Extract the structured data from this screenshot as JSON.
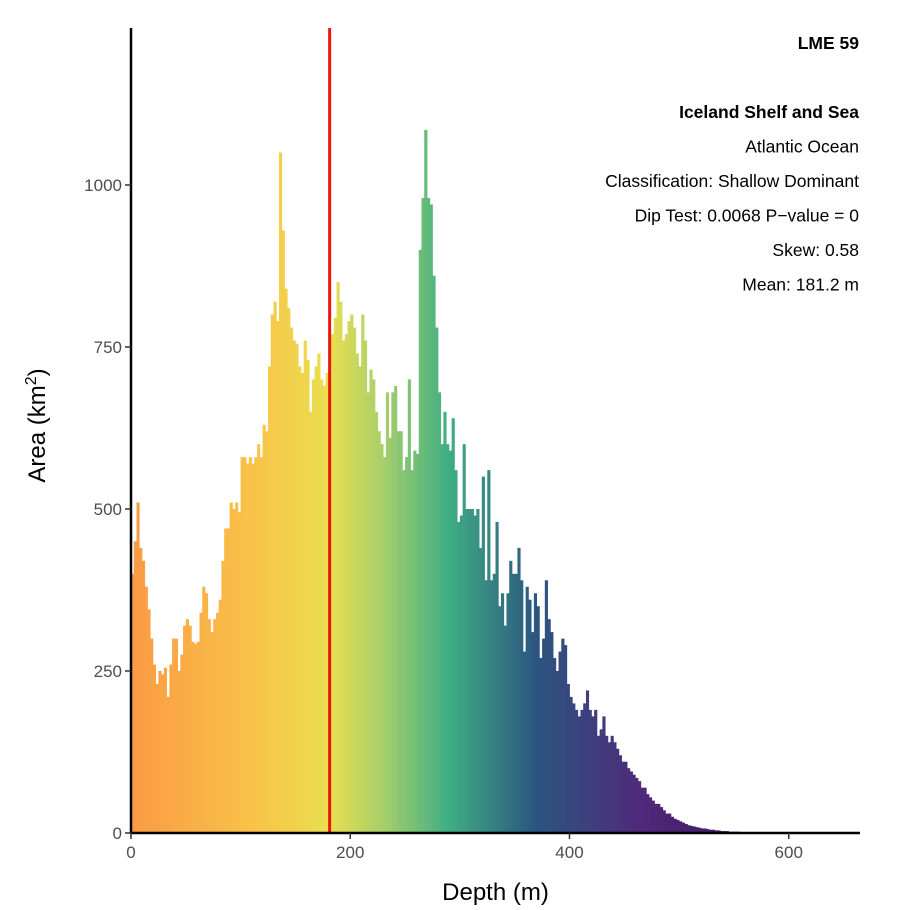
{
  "chart_data": {
    "type": "bar",
    "subtype": "histogram",
    "xlabel": "Depth (m)",
    "ylabel": {
      "prefix": "Area (km",
      "superscript": "2",
      "suffix": ")"
    },
    "xlim": [
      0,
      665
    ],
    "ylim": [
      0,
      1250
    ],
    "xticks": [
      0,
      200,
      400,
      600
    ],
    "xtick_labels": [
      "0",
      "200",
      "400",
      "600"
    ],
    "yticks": [
      0,
      250,
      500,
      750,
      1000
    ],
    "ytick_labels": [
      "0",
      "250",
      "500",
      "750",
      "1000"
    ],
    "grid": false,
    "bin_width": 2.5,
    "bin_start": 0,
    "values": [
      400,
      450,
      510,
      440,
      420,
      380,
      345,
      300,
      260,
      230,
      250,
      245,
      255,
      210,
      260,
      300,
      300,
      250,
      275,
      320,
      330,
      320,
      295,
      292,
      295,
      340,
      380,
      370,
      330,
      310,
      330,
      340,
      360,
      420,
      470,
      470,
      510,
      500,
      510,
      495,
      580,
      580,
      570,
      580,
      570,
      580,
      600,
      580,
      630,
      620,
      720,
      800,
      820,
      790,
      1050,
      930,
      840,
      810,
      780,
      760,
      755,
      720,
      710,
      760,
      730,
      650,
      700,
      720,
      740,
      700,
      690,
      710,
      770,
      770,
      795,
      850,
      820,
      760,
      770,
      790,
      800,
      780,
      740,
      720,
      800,
      760,
      680,
      715,
      700,
      650,
      620,
      600,
      580,
      680,
      610,
      680,
      690,
      620,
      620,
      560,
      580,
      700,
      560,
      590,
      585,
      900,
      980,
      1085,
      980,
      970,
      860,
      780,
      680,
      600,
      650,
      600,
      590,
      640,
      560,
      480,
      490,
      600,
      500,
      500,
      500,
      490,
      500,
      440,
      550,
      390,
      560,
      390,
      400,
      480,
      350,
      370,
      320,
      370,
      420,
      400,
      400,
      440,
      390,
      280,
      380,
      360,
      310,
      370,
      350,
      270,
      300,
      390,
      330,
      310,
      270,
      250,
      280,
      300,
      290,
      230,
      210,
      200,
      190,
      180,
      190,
      200,
      220,
      190,
      180,
      190,
      150,
      160,
      180,
      150,
      140,
      150,
      140,
      130,
      120,
      110,
      110,
      100,
      95,
      90,
      85,
      80,
      70,
      70,
      60,
      55,
      50,
      45,
      45,
      40,
      35,
      30,
      30,
      25,
      22,
      20,
      18,
      16,
      14,
      12,
      11,
      10,
      9,
      8,
      7,
      7,
      6,
      5,
      5,
      4,
      4,
      3,
      3,
      3,
      2,
      2,
      2,
      2,
      1,
      1,
      1,
      1,
      1,
      1,
      1,
      1,
      1,
      1,
      0,
      1,
      0,
      0,
      0,
      1,
      0,
      0,
      0,
      0,
      0,
      0,
      0,
      0,
      0,
      0,
      0,
      0,
      0,
      0,
      0,
      0,
      0,
      0,
      0,
      0,
      0,
      0,
      0,
      0,
      0,
      0,
      0,
      0,
      0,
      0,
      0,
      0,
      0,
      0,
      0,
      0,
      0,
      0,
      0,
      0,
      0,
      0,
      0,
      0,
      0,
      0
    ],
    "mean_line": {
      "x": 181.2,
      "color": "#e8170f"
    },
    "color_stops": [
      {
        "x": 0,
        "color": "#fa9a45"
      },
      {
        "x": 110,
        "color": "#f9c248"
      },
      {
        "x": 180,
        "color": "#eadf4f"
      },
      {
        "x": 230,
        "color": "#a6cf6b"
      },
      {
        "x": 290,
        "color": "#3fae83"
      },
      {
        "x": 370,
        "color": "#2c5580"
      },
      {
        "x": 470,
        "color": "#50287a"
      },
      {
        "x": 665,
        "color": "#1e0b3a"
      }
    ],
    "annotations": [
      {
        "text": "LME 59",
        "bold": true
      },
      {
        "text": "",
        "bold": false
      },
      {
        "text": "Iceland Shelf and Sea",
        "bold": true
      },
      {
        "text": "Atlantic Ocean",
        "bold": false
      },
      {
        "text": "Classification: Shallow Dominant",
        "bold": false
      },
      {
        "text": "Dip Test: 0.0068 P−value = 0",
        "bold": false
      },
      {
        "text": "Skew: 0.58",
        "bold": false
      },
      {
        "text": "Mean: 181.2 m",
        "bold": false
      }
    ]
  }
}
